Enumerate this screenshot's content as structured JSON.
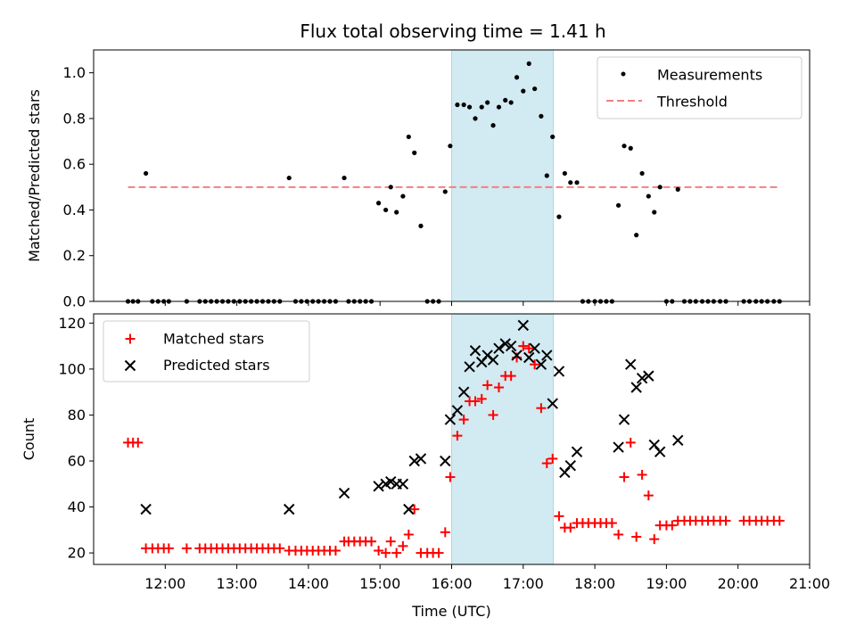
{
  "title": "Flux total observing time = 1.41 h",
  "colors": {
    "measurements": "#000000",
    "threshold": "#f08080",
    "matched": "#ff0000",
    "predicted": "#000000",
    "highlight": "#add8e6"
  },
  "chart_data": [
    {
      "type": "scatter",
      "panel": "top",
      "ylabel": "Matched/Predicted stars",
      "xlabel": "",
      "xlim": [
        11.0,
        21.0
      ],
      "ylim": [
        0.0,
        1.1
      ],
      "yticks": [
        0.0,
        0.2,
        0.4,
        0.6,
        0.8,
        1.0
      ],
      "ytick_labels": [
        "0.0",
        "0.2",
        "0.4",
        "0.6",
        "0.8",
        "1.0"
      ],
      "highlight_span": [
        16.0,
        17.42
      ],
      "legend": {
        "position": "top-right",
        "entries": [
          "Measurements",
          "Threshold"
        ]
      },
      "threshold": {
        "name": "Threshold",
        "y": 0.5,
        "x_range": [
          11.48,
          20.58
        ]
      },
      "series": [
        {
          "name": "Measurements",
          "marker": "dot",
          "points": [
            [
              11.48,
              0.0
            ],
            [
              11.55,
              0.0
            ],
            [
              11.62,
              0.0
            ],
            [
              11.73,
              0.56
            ],
            [
              11.82,
              0.0
            ],
            [
              11.9,
              0.0
            ],
            [
              11.98,
              0.0
            ],
            [
              12.05,
              0.0
            ],
            [
              12.3,
              0.0
            ],
            [
              12.48,
              0.0
            ],
            [
              12.56,
              0.0
            ],
            [
              12.64,
              0.0
            ],
            [
              12.72,
              0.0
            ],
            [
              12.8,
              0.0
            ],
            [
              12.88,
              0.0
            ],
            [
              12.96,
              0.0
            ],
            [
              13.04,
              0.0
            ],
            [
              13.12,
              0.0
            ],
            [
              13.2,
              0.0
            ],
            [
              13.28,
              0.0
            ],
            [
              13.36,
              0.0
            ],
            [
              13.44,
              0.0
            ],
            [
              13.52,
              0.0
            ],
            [
              13.6,
              0.0
            ],
            [
              13.73,
              0.54
            ],
            [
              13.82,
              0.0
            ],
            [
              13.9,
              0.0
            ],
            [
              13.98,
              0.0
            ],
            [
              14.06,
              0.0
            ],
            [
              14.14,
              0.0
            ],
            [
              14.22,
              0.0
            ],
            [
              14.3,
              0.0
            ],
            [
              14.38,
              0.0
            ],
            [
              14.5,
              0.54
            ],
            [
              14.56,
              0.0
            ],
            [
              14.64,
              0.0
            ],
            [
              14.72,
              0.0
            ],
            [
              14.8,
              0.0
            ],
            [
              14.88,
              0.0
            ],
            [
              14.98,
              0.43
            ],
            [
              15.08,
              0.4
            ],
            [
              15.15,
              0.5
            ],
            [
              15.23,
              0.39
            ],
            [
              15.32,
              0.46
            ],
            [
              15.4,
              0.72
            ],
            [
              15.48,
              0.65
            ],
            [
              15.57,
              0.33
            ],
            [
              15.66,
              0.0
            ],
            [
              15.74,
              0.0
            ],
            [
              15.82,
              0.0
            ],
            [
              15.91,
              0.48
            ],
            [
              15.98,
              0.68
            ],
            [
              16.08,
              0.86
            ],
            [
              16.17,
              0.86
            ],
            [
              16.25,
              0.85
            ],
            [
              16.33,
              0.8
            ],
            [
              16.42,
              0.85
            ],
            [
              16.5,
              0.87
            ],
            [
              16.58,
              0.77
            ],
            [
              16.66,
              0.85
            ],
            [
              16.75,
              0.88
            ],
            [
              16.83,
              0.87
            ],
            [
              16.91,
              0.98
            ],
            [
              17.0,
              0.92
            ],
            [
              17.08,
              1.04
            ],
            [
              17.16,
              0.93
            ],
            [
              17.25,
              0.81
            ],
            [
              17.33,
              0.55
            ],
            [
              17.41,
              0.72
            ],
            [
              17.5,
              0.37
            ],
            [
              17.58,
              0.56
            ],
            [
              17.66,
              0.52
            ],
            [
              17.75,
              0.52
            ],
            [
              17.83,
              0.0
            ],
            [
              17.91,
              0.0
            ],
            [
              18.0,
              0.0
            ],
            [
              18.08,
              0.0
            ],
            [
              18.16,
              0.0
            ],
            [
              18.24,
              0.0
            ],
            [
              18.33,
              0.42
            ],
            [
              18.41,
              0.68
            ],
            [
              18.5,
              0.67
            ],
            [
              18.58,
              0.29
            ],
            [
              18.66,
              0.56
            ],
            [
              18.75,
              0.46
            ],
            [
              18.83,
              0.39
            ],
            [
              18.91,
              0.5
            ],
            [
              19.0,
              0.0
            ],
            [
              19.08,
              0.0
            ],
            [
              19.16,
              0.49
            ],
            [
              19.25,
              0.0
            ],
            [
              19.33,
              0.0
            ],
            [
              19.41,
              0.0
            ],
            [
              19.5,
              0.0
            ],
            [
              19.58,
              0.0
            ],
            [
              19.66,
              0.0
            ],
            [
              19.75,
              0.0
            ],
            [
              19.83,
              0.0
            ],
            [
              20.08,
              0.0
            ],
            [
              20.16,
              0.0
            ],
            [
              20.25,
              0.0
            ],
            [
              20.33,
              0.0
            ],
            [
              20.41,
              0.0
            ],
            [
              20.5,
              0.0
            ],
            [
              20.58,
              0.0
            ]
          ]
        }
      ]
    },
    {
      "type": "scatter",
      "panel": "bottom",
      "ylabel": "Count",
      "xlabel": "Time (UTC)",
      "xlim": [
        11.0,
        21.0
      ],
      "ylim": [
        15,
        124
      ],
      "yticks": [
        20,
        40,
        60,
        80,
        100,
        120
      ],
      "ytick_labels": [
        "20",
        "40",
        "60",
        "80",
        "100",
        "120"
      ],
      "xticks": [
        12,
        13,
        14,
        15,
        16,
        17,
        18,
        19,
        20,
        21
      ],
      "xtick_labels": [
        "12:00",
        "13:00",
        "14:00",
        "15:00",
        "16:00",
        "17:00",
        "18:00",
        "19:00",
        "20:00",
        "21:00"
      ],
      "highlight_span": [
        16.0,
        17.42
      ],
      "legend": {
        "position": "top-left",
        "entries": [
          "Matched stars",
          "Predicted stars"
        ]
      },
      "series": [
        {
          "name": "Matched stars",
          "marker": "plus",
          "points": [
            [
              11.48,
              68
            ],
            [
              11.55,
              68
            ],
            [
              11.62,
              68
            ],
            [
              11.73,
              22
            ],
            [
              11.82,
              22
            ],
            [
              11.9,
              22
            ],
            [
              11.98,
              22
            ],
            [
              12.05,
              22
            ],
            [
              12.3,
              22
            ],
            [
              12.48,
              22
            ],
            [
              12.56,
              22
            ],
            [
              12.64,
              22
            ],
            [
              12.72,
              22
            ],
            [
              12.8,
              22
            ],
            [
              12.88,
              22
            ],
            [
              12.96,
              22
            ],
            [
              13.04,
              22
            ],
            [
              13.12,
              22
            ],
            [
              13.2,
              22
            ],
            [
              13.28,
              22
            ],
            [
              13.36,
              22
            ],
            [
              13.44,
              22
            ],
            [
              13.52,
              22
            ],
            [
              13.6,
              22
            ],
            [
              13.73,
              21
            ],
            [
              13.82,
              21
            ],
            [
              13.9,
              21
            ],
            [
              13.98,
              21
            ],
            [
              14.06,
              21
            ],
            [
              14.14,
              21
            ],
            [
              14.22,
              21
            ],
            [
              14.3,
              21
            ],
            [
              14.38,
              21
            ],
            [
              14.5,
              25
            ],
            [
              14.56,
              25
            ],
            [
              14.64,
              25
            ],
            [
              14.72,
              25
            ],
            [
              14.8,
              25
            ],
            [
              14.88,
              25
            ],
            [
              14.98,
              21
            ],
            [
              15.08,
              20
            ],
            [
              15.15,
              25
            ],
            [
              15.23,
              20
            ],
            [
              15.32,
              23
            ],
            [
              15.4,
              28
            ],
            [
              15.48,
              39
            ],
            [
              15.57,
              20
            ],
            [
              15.66,
              20
            ],
            [
              15.74,
              20
            ],
            [
              15.82,
              20
            ],
            [
              15.91,
              29
            ],
            [
              15.98,
              53
            ],
            [
              16.08,
              71
            ],
            [
              16.17,
              78
            ],
            [
              16.25,
              86
            ],
            [
              16.33,
              86
            ],
            [
              16.42,
              87
            ],
            [
              16.5,
              93
            ],
            [
              16.58,
              80
            ],
            [
              16.66,
              92
            ],
            [
              16.75,
              97
            ],
            [
              16.83,
              97
            ],
            [
              16.91,
              105
            ],
            [
              17.0,
              110
            ],
            [
              17.08,
              109
            ],
            [
              17.16,
              102
            ],
            [
              17.25,
              83
            ],
            [
              17.33,
              59
            ],
            [
              17.41,
              61
            ],
            [
              17.5,
              36
            ],
            [
              17.58,
              31
            ],
            [
              17.66,
              31
            ],
            [
              17.75,
              33
            ],
            [
              17.83,
              33
            ],
            [
              17.91,
              33
            ],
            [
              18.0,
              33
            ],
            [
              18.08,
              33
            ],
            [
              18.16,
              33
            ],
            [
              18.24,
              33
            ],
            [
              18.33,
              28
            ],
            [
              18.41,
              53
            ],
            [
              18.5,
              68
            ],
            [
              18.58,
              27
            ],
            [
              18.66,
              54
            ],
            [
              18.75,
              45
            ],
            [
              18.83,
              26
            ],
            [
              18.91,
              32
            ],
            [
              19.0,
              32
            ],
            [
              19.08,
              32
            ],
            [
              19.16,
              34
            ],
            [
              19.25,
              34
            ],
            [
              19.33,
              34
            ],
            [
              19.41,
              34
            ],
            [
              19.5,
              34
            ],
            [
              19.58,
              34
            ],
            [
              19.66,
              34
            ],
            [
              19.75,
              34
            ],
            [
              19.83,
              34
            ],
            [
              20.08,
              34
            ],
            [
              20.16,
              34
            ],
            [
              20.25,
              34
            ],
            [
              20.33,
              34
            ],
            [
              20.41,
              34
            ],
            [
              20.5,
              34
            ],
            [
              20.58,
              34
            ]
          ]
        },
        {
          "name": "Predicted stars",
          "marker": "x",
          "points": [
            [
              11.73,
              39
            ],
            [
              13.73,
              39
            ],
            [
              14.5,
              46
            ],
            [
              14.98,
              49
            ],
            [
              15.08,
              50
            ],
            [
              15.15,
              51
            ],
            [
              15.23,
              50
            ],
            [
              15.32,
              50
            ],
            [
              15.4,
              39
            ],
            [
              15.48,
              60
            ],
            [
              15.57,
              61
            ],
            [
              15.91,
              60
            ],
            [
              15.98,
              78
            ],
            [
              16.08,
              82
            ],
            [
              16.17,
              90
            ],
            [
              16.25,
              101
            ],
            [
              16.33,
              108
            ],
            [
              16.42,
              103
            ],
            [
              16.5,
              106
            ],
            [
              16.58,
              104
            ],
            [
              16.66,
              109
            ],
            [
              16.75,
              111
            ],
            [
              16.83,
              110
            ],
            [
              16.91,
              106
            ],
            [
              17.0,
              119
            ],
            [
              17.08,
              105
            ],
            [
              17.16,
              109
            ],
            [
              17.25,
              102
            ],
            [
              17.33,
              106
            ],
            [
              17.41,
              85
            ],
            [
              17.5,
              99
            ],
            [
              17.58,
              55
            ],
            [
              17.66,
              58
            ],
            [
              17.75,
              64
            ],
            [
              18.33,
              66
            ],
            [
              18.41,
              78
            ],
            [
              18.5,
              102
            ],
            [
              18.58,
              92
            ],
            [
              18.66,
              96
            ],
            [
              18.75,
              97
            ],
            [
              18.83,
              67
            ],
            [
              18.91,
              64
            ],
            [
              19.16,
              69
            ]
          ]
        }
      ]
    }
  ]
}
